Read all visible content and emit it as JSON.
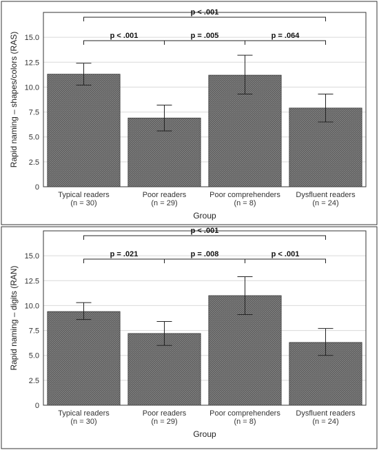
{
  "chart_data": [
    {
      "type": "bar",
      "categories": [
        "Typical readers",
        "Poor readers",
        "Poor comprehenders",
        "Dysfluent readers"
      ],
      "category_n": [
        "(n = 30)",
        "(n = 29)",
        "(n = 8)",
        "(n = 24)"
      ],
      "values": [
        11.3,
        6.9,
        11.2,
        7.9
      ],
      "error_low": [
        10.2,
        5.6,
        9.3,
        6.5
      ],
      "error_high": [
        12.4,
        8.2,
        13.2,
        9.3
      ],
      "xlabel": "Group",
      "ylabel": "Rapid naming – shapes/colors (RAS)",
      "ylim": [
        0,
        17.5
      ],
      "yticks": [
        "0",
        "2.5",
        "5.0",
        "7.5",
        "10.0",
        "12.5",
        "15.0"
      ],
      "grid": true,
      "comparisons": [
        {
          "from": 0,
          "to": 1,
          "label": "p < .001",
          "level": 1
        },
        {
          "from": 1,
          "to": 2,
          "label": "p = .005",
          "level": 1
        },
        {
          "from": 2,
          "to": 3,
          "label": "p = .064",
          "level": 1
        },
        {
          "from": 0,
          "to": 3,
          "label": "p < .001",
          "level": 2
        }
      ]
    },
    {
      "type": "bar",
      "categories": [
        "Typical readers",
        "Poor readers",
        "Poor comprehenders",
        "Dysfluent readers"
      ],
      "category_n": [
        "(n = 30)",
        "(n = 29)",
        "(n = 8)",
        "(n = 24)"
      ],
      "values": [
        9.4,
        7.2,
        11.0,
        6.3
      ],
      "error_low": [
        8.6,
        6.0,
        9.1,
        5.0
      ],
      "error_high": [
        10.3,
        8.4,
        12.9,
        7.7
      ],
      "xlabel": "Group",
      "ylabel": "Rapid naming – digits (RAN)",
      "ylim": [
        0,
        17.5
      ],
      "yticks": [
        "0",
        "2.5",
        "5.0",
        "7.5",
        "10.0",
        "12.5",
        "15.0"
      ],
      "grid": true,
      "comparisons": [
        {
          "from": 0,
          "to": 1,
          "label": "p = .021",
          "level": 1
        },
        {
          "from": 1,
          "to": 2,
          "label": "p = .008",
          "level": 1
        },
        {
          "from": 2,
          "to": 3,
          "label": "p < .001",
          "level": 1
        },
        {
          "from": 0,
          "to": 3,
          "label": "p < .001",
          "level": 2
        }
      ]
    }
  ],
  "colors": {
    "bar_fill": "#5c5c5c",
    "bar_hatch": "#9a9a9a",
    "bar_edge": "#3a3a3a",
    "grid": "#d9d9d9",
    "frame": "#333333",
    "error_bar": "#222222"
  }
}
